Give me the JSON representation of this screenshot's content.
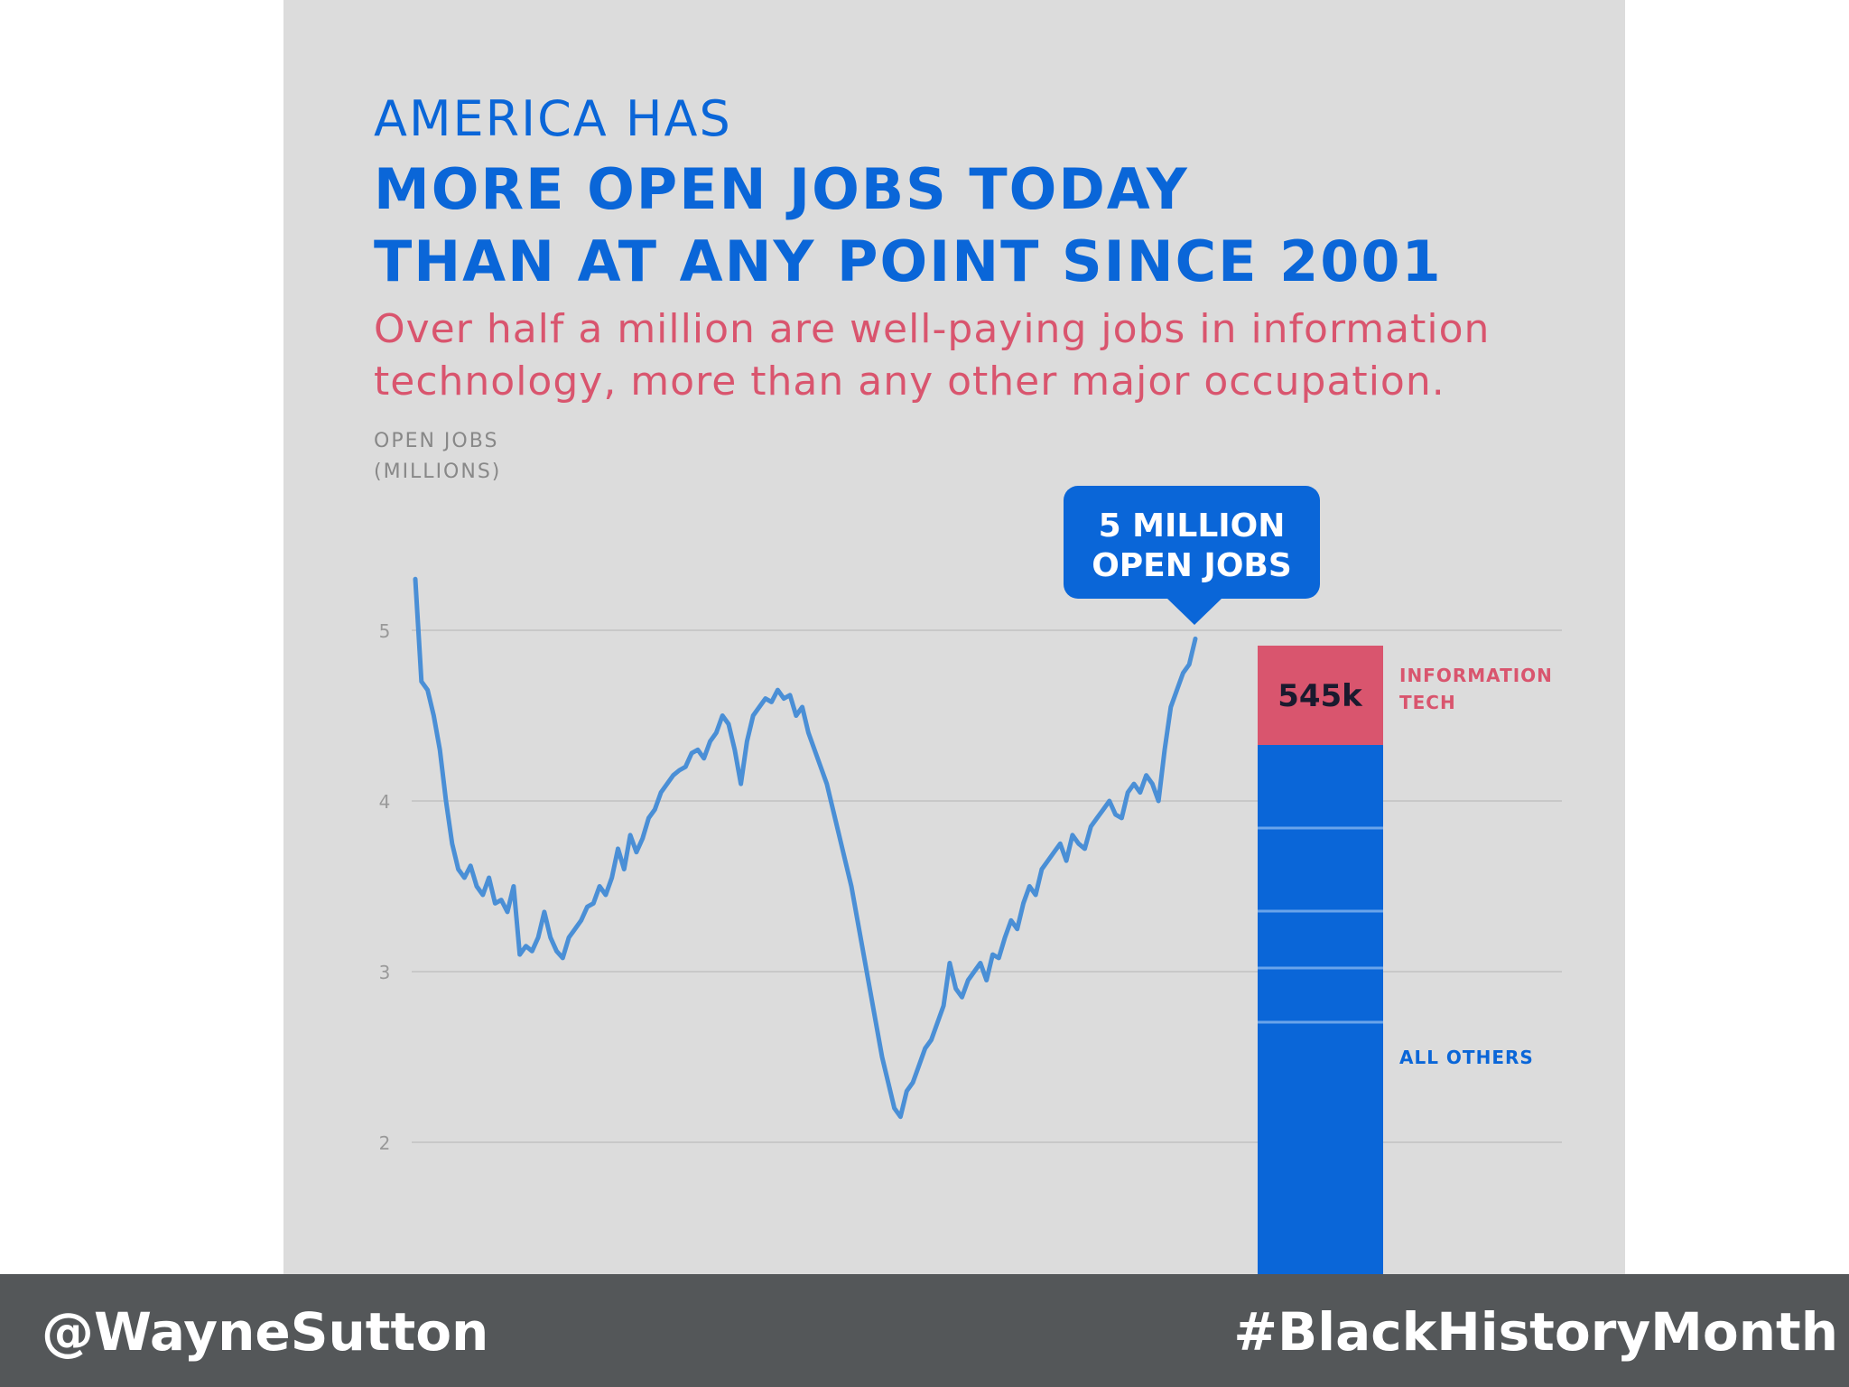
{
  "title_pre": "AMERICA HAS",
  "title_lines": [
    "MORE OPEN JOBS TODAY",
    "THAN AT ANY POINT SINCE 2001"
  ],
  "subtitle_lines": [
    "Over half a million are well-paying jobs in information",
    "technology, more than any other major occupation."
  ],
  "ylabel_lines": [
    "OPEN JOBS",
    "(MILLIONS)"
  ],
  "callout_lines": [
    "5 MILLION",
    "OPEN JOBS"
  ],
  "footer": {
    "handle": "@WayneSutton",
    "hashtag": "#BlackHistoryMonth"
  },
  "colors": {
    "line": "#4a8fd6",
    "blue": "#0a66d8",
    "pink": "#d9556e",
    "grid": "#c8c8c8",
    "panel": "#dcdcdc",
    "footer": "#545759"
  },
  "chart_data": [
    {
      "type": "line",
      "ylabel": "OPEN JOBS (MILLIONS)",
      "ylim": [
        2,
        5
      ],
      "yticks": [
        "5",
        "4",
        "3",
        "2"
      ],
      "grid": true,
      "series": [
        {
          "values": [
            5.3,
            4.7,
            4.65,
            4.5,
            4.3,
            4.0,
            3.75,
            3.6,
            3.55,
            3.62,
            3.5,
            3.45,
            3.55,
            3.4,
            3.42,
            3.35,
            3.5,
            3.1,
            3.15,
            3.12,
            3.2,
            3.35,
            3.2,
            3.12,
            3.08,
            3.2,
            3.25,
            3.3,
            3.38,
            3.4,
            3.5,
            3.45,
            3.55,
            3.72,
            3.6,
            3.8,
            3.7,
            3.78,
            3.9,
            3.95,
            4.05,
            4.1,
            4.15,
            4.18,
            4.2,
            4.28,
            4.3,
            4.25,
            4.35,
            4.4,
            4.5,
            4.45,
            4.3,
            4.1,
            4.35,
            4.5,
            4.55,
            4.6,
            4.58,
            4.65,
            4.6,
            4.62,
            4.5,
            4.55,
            4.4,
            4.3,
            4.2,
            4.1,
            3.95,
            3.8,
            3.65,
            3.5,
            3.3,
            3.1,
            2.9,
            2.7,
            2.5,
            2.35,
            2.2,
            2.15,
            2.3,
            2.35,
            2.45,
            2.55,
            2.6,
            2.7,
            2.8,
            3.05,
            2.9,
            2.85,
            2.95,
            3.0,
            3.05,
            2.95,
            3.1,
            3.08,
            3.2,
            3.3,
            3.25,
            3.4,
            3.5,
            3.45,
            3.6,
            3.65,
            3.7,
            3.75,
            3.65,
            3.8,
            3.75,
            3.72,
            3.85,
            3.9,
            3.95,
            4.0,
            3.92,
            3.9,
            4.05,
            4.1,
            4.05,
            4.15,
            4.1,
            4.0,
            4.3,
            4.55,
            4.65,
            4.75,
            4.8,
            4.95
          ]
        }
      ]
    },
    {
      "type": "bar",
      "stacked": true,
      "segments": [
        {
          "label": "INFORMATION TECH",
          "value_label": "545k",
          "value": 0.545
        },
        {
          "label": "ALL OTHERS",
          "value": 4.455
        }
      ]
    }
  ]
}
